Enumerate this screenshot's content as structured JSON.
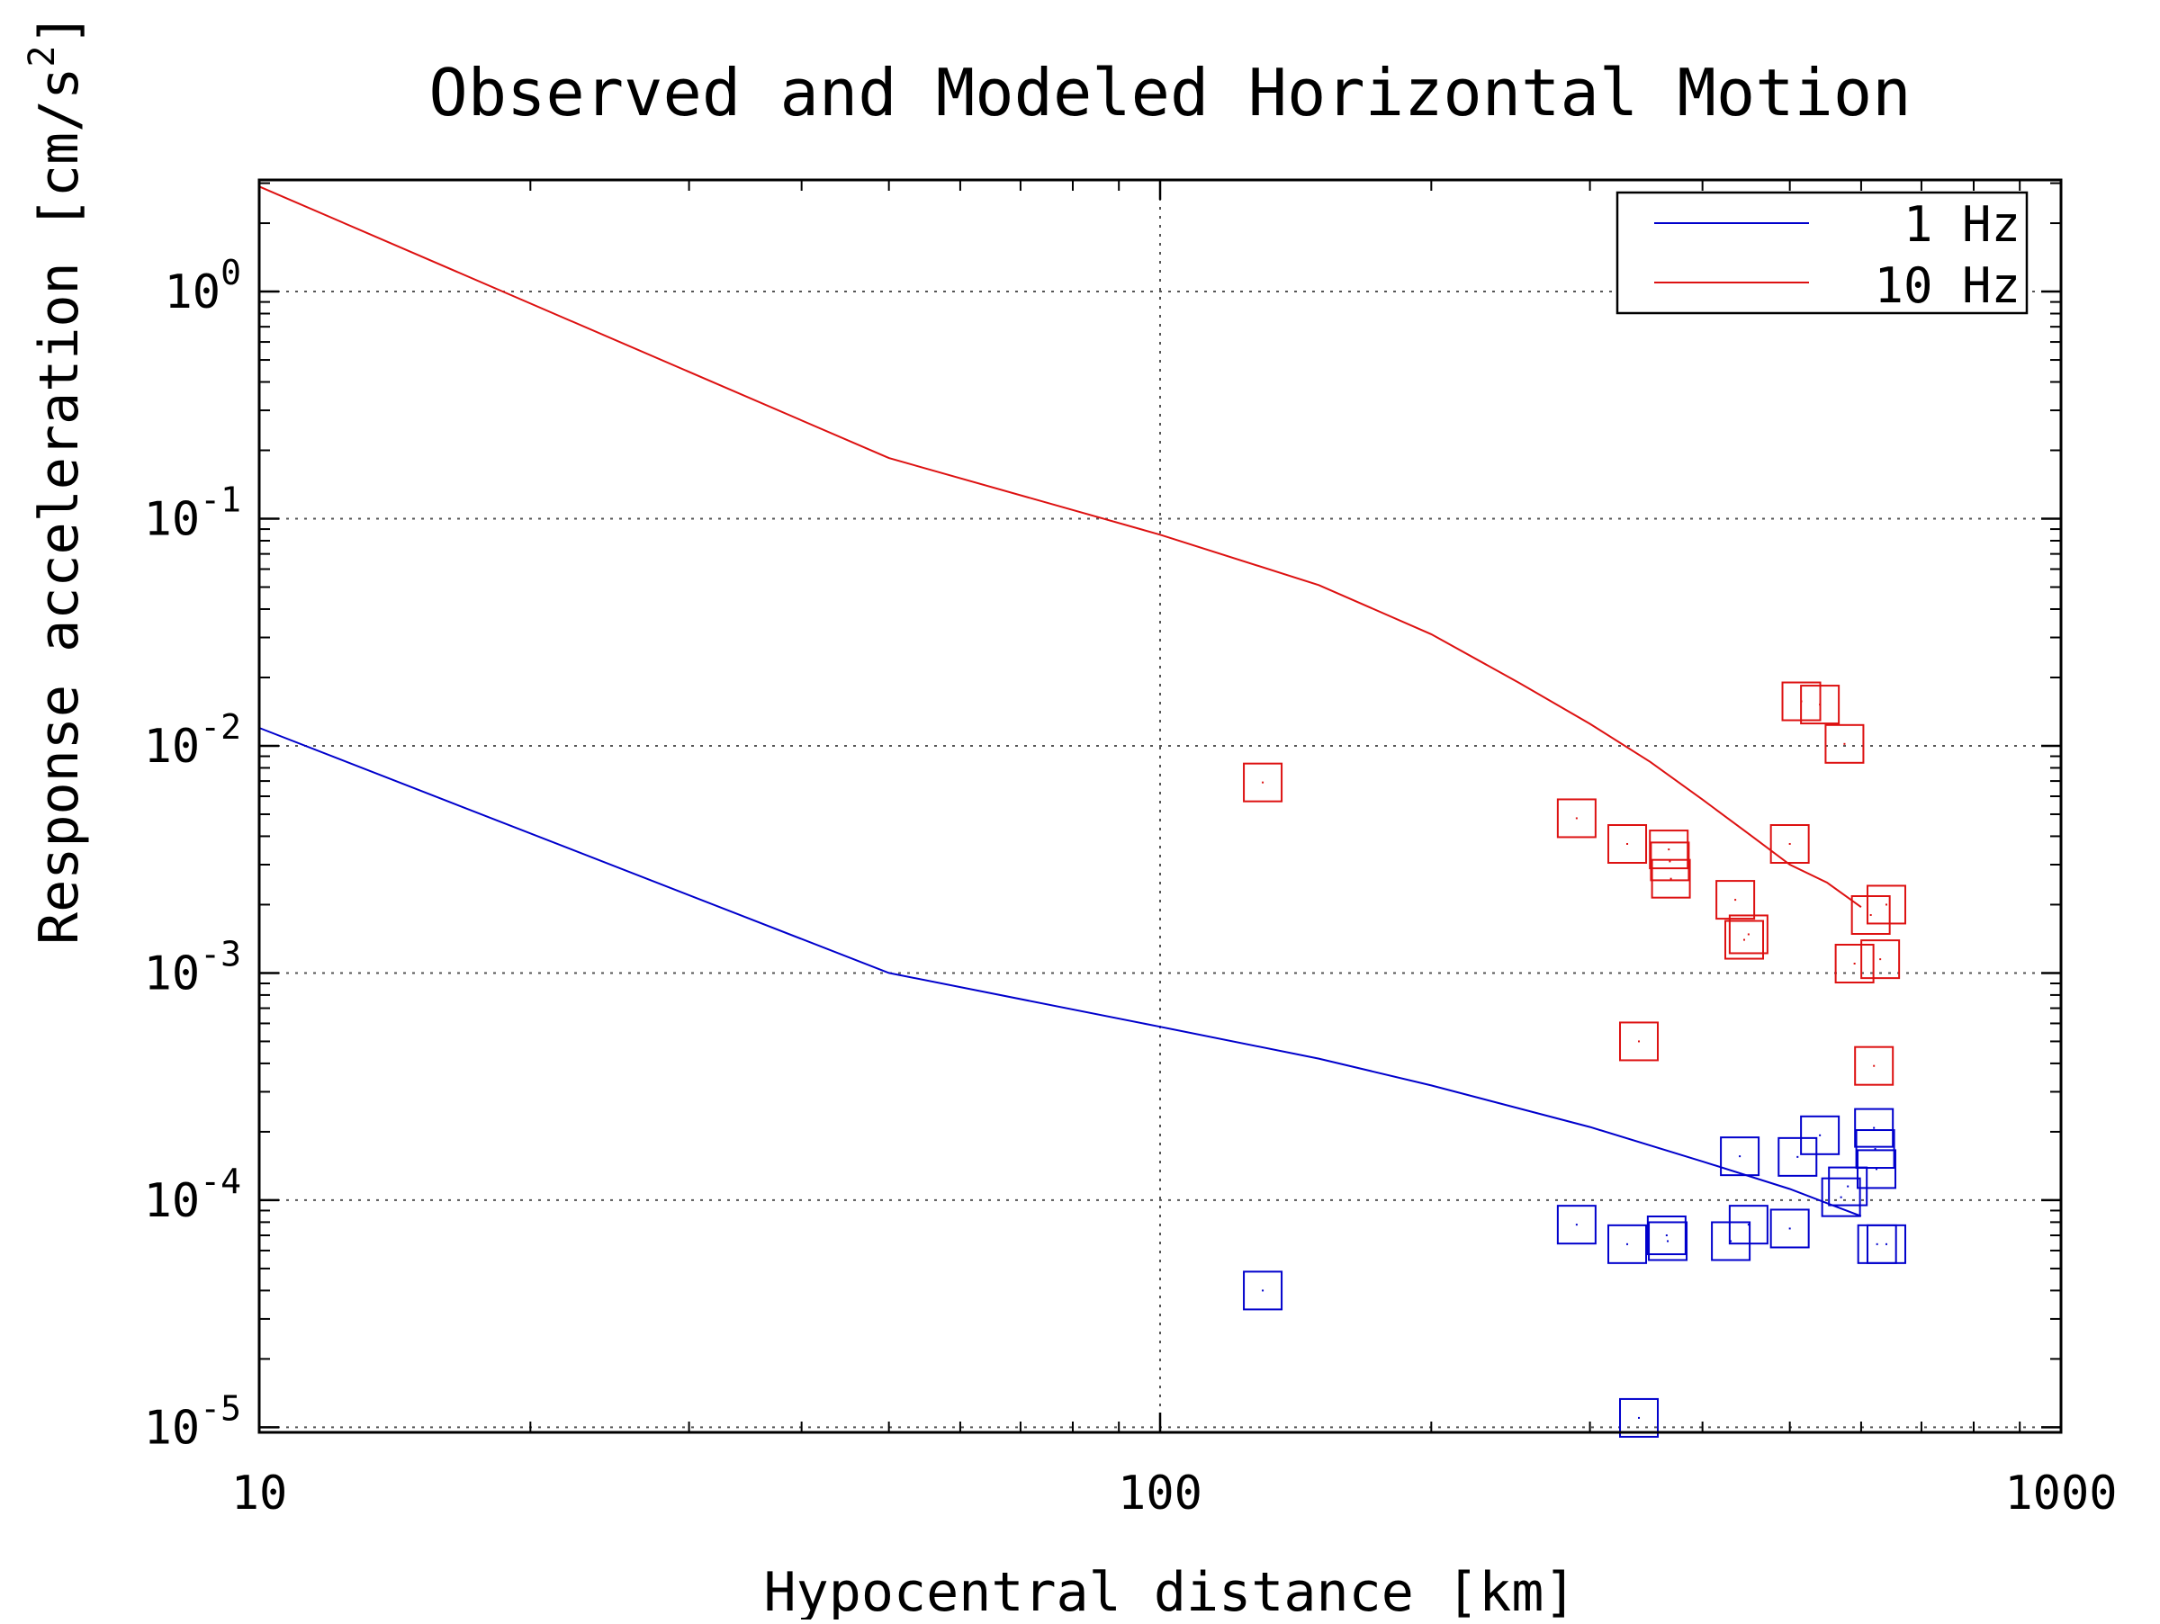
{
  "chart_data": {
    "type": "scatter",
    "title": "Observed and Modeled Horizontal Motion",
    "xlabel": "Hypocentral distance [km]",
    "ylabel": {
      "text": "Response acceleration [cm/s",
      "superscript": "2",
      "suffix": "]"
    },
    "x_scale": "log",
    "y_scale": "log",
    "xlim": [
      10,
      1000
    ],
    "ylim": [
      9.5e-06,
      3.1
    ],
    "x_ticks": [
      {
        "value": 10,
        "label": "10"
      },
      {
        "value": 100,
        "label": "100"
      },
      {
        "value": 1000,
        "label": "1000"
      }
    ],
    "y_ticks": [
      {
        "value": 1,
        "base": "10",
        "exp": "0"
      },
      {
        "value": 0.1,
        "base": "10",
        "exp": "-1"
      },
      {
        "value": 0.01,
        "base": "10",
        "exp": "-2"
      },
      {
        "value": 0.001,
        "base": "10",
        "exp": "-3"
      },
      {
        "value": 0.0001,
        "base": "10",
        "exp": "-4"
      },
      {
        "value": 1e-05,
        "base": "10",
        "exp": "-5"
      }
    ],
    "grid": true,
    "legend_position": "top-right",
    "colors": {
      "1 Hz": "#0000cc",
      "10 Hz": "#dd1111"
    },
    "series": [
      {
        "name": "1 Hz",
        "color": "#0000cc",
        "model_line": [
          [
            10,
            0.012
          ],
          [
            50,
            0.001
          ],
          [
            100,
            0.00058
          ],
          [
            150,
            0.00042
          ],
          [
            200,
            0.00032
          ],
          [
            300,
            0.00021
          ],
          [
            400,
            0.000148
          ],
          [
            500,
            0.000112
          ],
          [
            600,
            8.5e-05
          ]
        ],
        "observed": [
          [
            130,
            4e-05
          ],
          [
            290,
            7.8e-05
          ],
          [
            330,
            6.4e-05
          ],
          [
            340,
            1.1e-05
          ],
          [
            365,
            7e-05
          ],
          [
            366,
            6.6e-05
          ],
          [
            430,
            6.6e-05
          ],
          [
            440,
            0.000156
          ],
          [
            450,
            7.8e-05
          ],
          [
            500,
            7.5e-05
          ],
          [
            510,
            0.000155
          ],
          [
            540,
            0.000193
          ],
          [
            570,
            0.000103
          ],
          [
            580,
            0.000115
          ],
          [
            620,
            0.000208
          ],
          [
            622,
            0.000168
          ],
          [
            624,
            0.000137
          ],
          [
            625,
            6.4e-05
          ],
          [
            640,
            6.4e-05
          ]
        ]
      },
      {
        "name": "10 Hz",
        "color": "#dd1111",
        "model_line": [
          [
            10,
            2.9
          ],
          [
            50,
            0.185
          ],
          [
            100,
            0.085
          ],
          [
            150,
            0.051
          ],
          [
            200,
            0.031
          ],
          [
            250,
            0.019
          ],
          [
            300,
            0.0125
          ],
          [
            350,
            0.0085
          ],
          [
            400,
            0.0058
          ],
          [
            450,
            0.0041
          ],
          [
            500,
            0.003
          ],
          [
            550,
            0.0025
          ],
          [
            600,
            0.00195
          ]
        ],
        "observed": [
          [
            130,
            0.0069
          ],
          [
            290,
            0.0048
          ],
          [
            330,
            0.0037
          ],
          [
            340,
            0.0005
          ],
          [
            367,
            0.0035
          ],
          [
            368,
            0.0031
          ],
          [
            369,
            0.0026
          ],
          [
            435,
            0.0021
          ],
          [
            445,
            0.0014
          ],
          [
            450,
            0.00148
          ],
          [
            500,
            0.0037
          ],
          [
            515,
            0.0157
          ],
          [
            540,
            0.0152
          ],
          [
            575,
            0.0102
          ],
          [
            590,
            0.0011
          ],
          [
            615,
            0.0018
          ],
          [
            620,
            0.00039
          ],
          [
            630,
            0.00115
          ],
          [
            640,
            0.002
          ]
        ]
      }
    ]
  }
}
